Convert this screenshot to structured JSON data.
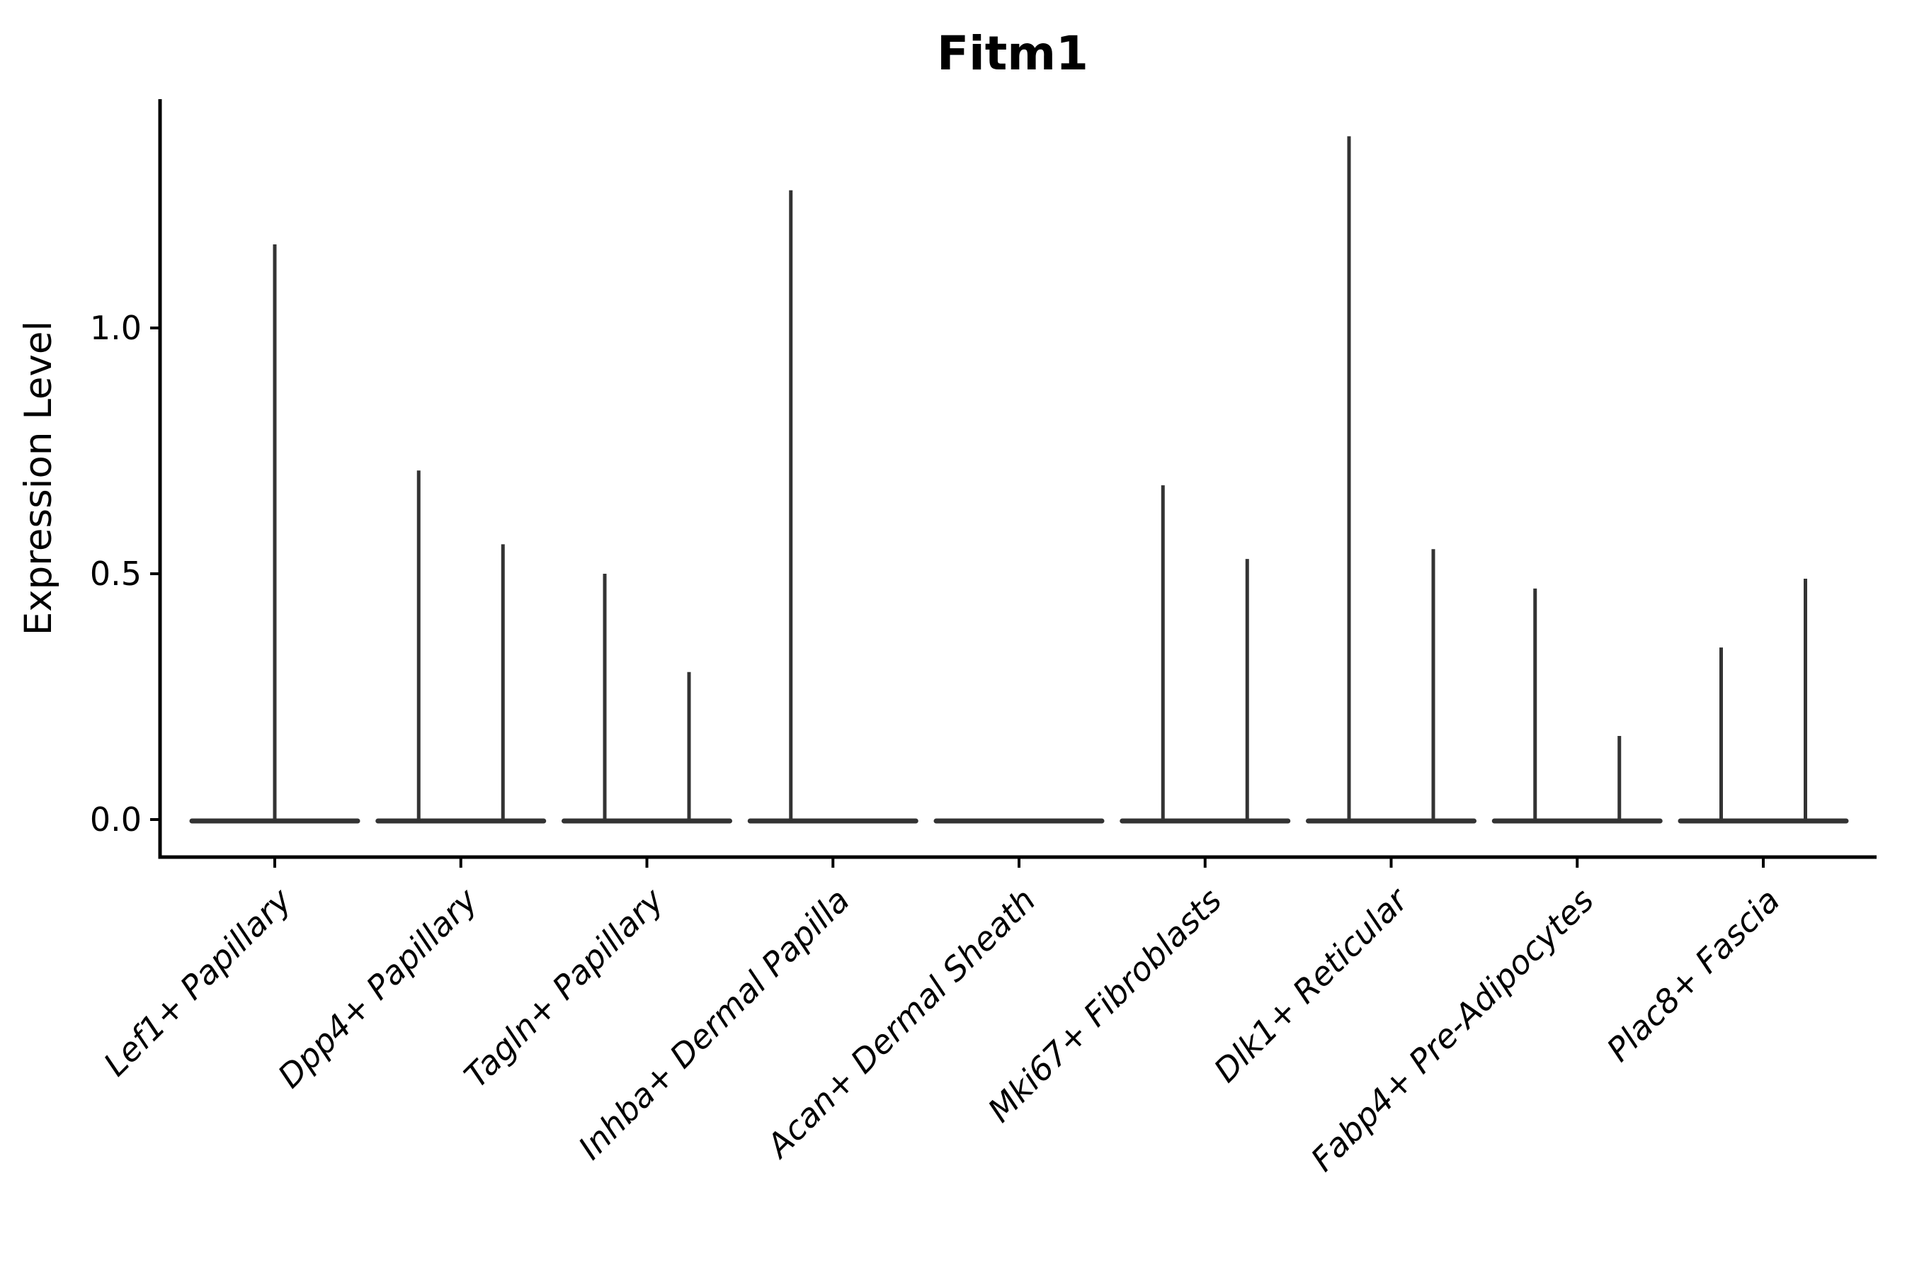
{
  "chart_data": {
    "type": "violin",
    "title": "Fitm1",
    "ylabel": "Expression Level",
    "xlabel": "",
    "grid": false,
    "legend": "none",
    "background": "#ffffff",
    "categories": [
      "Lef1+ Papillary",
      "Dpp4+ Papillary",
      "Tagln+ Papillary",
      "Inhba+ Dermal Papilla",
      "Acan+ Dermal Sheath",
      "Mki67+ Fibroblasts",
      "Dlk1+ Reticular",
      "Fabp4+ Pre-Adipocytes",
      "Plac8+ Fascia"
    ],
    "ytick_labels": [
      "0.0",
      "0.5",
      "1.0"
    ],
    "ytick_values": [
      0.0,
      0.5,
      1.0
    ],
    "ylim": [
      -0.075,
      1.465
    ],
    "baseline_value": 0.0,
    "violins": [
      {
        "category": "Lef1+ Papillary",
        "base_at_zero": true,
        "spikes": [
          {
            "position": "center",
            "max": 1.17
          }
        ]
      },
      {
        "category": "Dpp4+ Papillary",
        "base_at_zero": true,
        "spikes": [
          {
            "position": "left",
            "max": 0.71
          },
          {
            "position": "right",
            "max": 0.56
          }
        ]
      },
      {
        "category": "Tagln+ Papillary",
        "base_at_zero": true,
        "spikes": [
          {
            "position": "left",
            "max": 0.5
          },
          {
            "position": "right",
            "max": 0.3
          }
        ]
      },
      {
        "category": "Inhba+ Dermal Papilla",
        "base_at_zero": true,
        "spikes": [
          {
            "position": "left",
            "max": 1.28
          }
        ]
      },
      {
        "category": "Acan+ Dermal Sheath",
        "base_at_zero": true,
        "spikes": []
      },
      {
        "category": "Mki67+ Fibroblasts",
        "base_at_zero": true,
        "spikes": [
          {
            "position": "left",
            "max": 0.68
          },
          {
            "position": "right",
            "max": 0.53
          }
        ]
      },
      {
        "category": "Dlk1+ Reticular",
        "base_at_zero": true,
        "spikes": [
          {
            "position": "left",
            "max": 1.39
          },
          {
            "position": "right",
            "max": 0.55
          }
        ]
      },
      {
        "category": "Fabp4+ Pre-Adipocytes",
        "base_at_zero": true,
        "spikes": [
          {
            "position": "left",
            "max": 0.47
          },
          {
            "position": "right",
            "max": 0.17
          }
        ]
      },
      {
        "category": "Plac8+ Fascia",
        "base_at_zero": true,
        "spikes": [
          {
            "position": "left",
            "max": 0.35
          },
          {
            "position": "right",
            "max": 0.49
          }
        ]
      }
    ],
    "colors": {
      "violin_line": "#333333",
      "axis": "#000000",
      "text": "#000000",
      "background": "#ffffff"
    }
  }
}
